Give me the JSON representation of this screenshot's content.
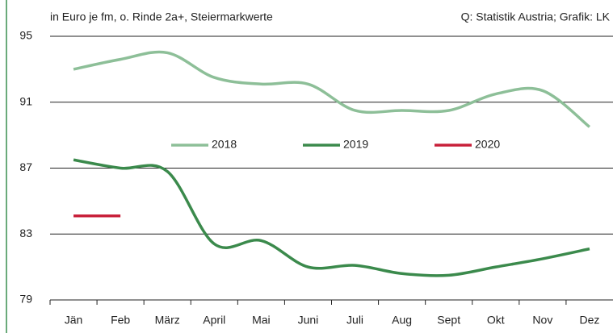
{
  "chart_data": {
    "type": "line",
    "subtitle": "in Euro je fm, o. Rinde 2a+, Steiermarkwerte",
    "source": "Q: Statistik Austria; Grafik: LK",
    "categories": [
      "Jän",
      "Feb",
      "März",
      "April",
      "Mai",
      "Juni",
      "Juli",
      "Aug",
      "Sept",
      "Okt",
      "Nov",
      "Dez"
    ],
    "series": [
      {
        "name": "2018",
        "color": "#8dbf98",
        "values": [
          93.0,
          93.6,
          94.0,
          92.5,
          92.1,
          92.1,
          90.5,
          90.5,
          90.5,
          91.5,
          91.7,
          89.5
        ]
      },
      {
        "name": "2019",
        "color": "#3b8a4c",
        "values": [
          87.5,
          87.0,
          86.8,
          82.4,
          82.6,
          81.0,
          81.1,
          80.6,
          80.5,
          81.0,
          81.5,
          82.1
        ]
      },
      {
        "name": "2020",
        "color": "#c8203a",
        "values": [
          84.1,
          84.1,
          null,
          null,
          null,
          null,
          null,
          null,
          null,
          null,
          null,
          null
        ]
      }
    ],
    "ylim": [
      79,
      95
    ],
    "yticks": [
      79,
      83,
      87,
      91,
      95
    ],
    "grid": true
  }
}
